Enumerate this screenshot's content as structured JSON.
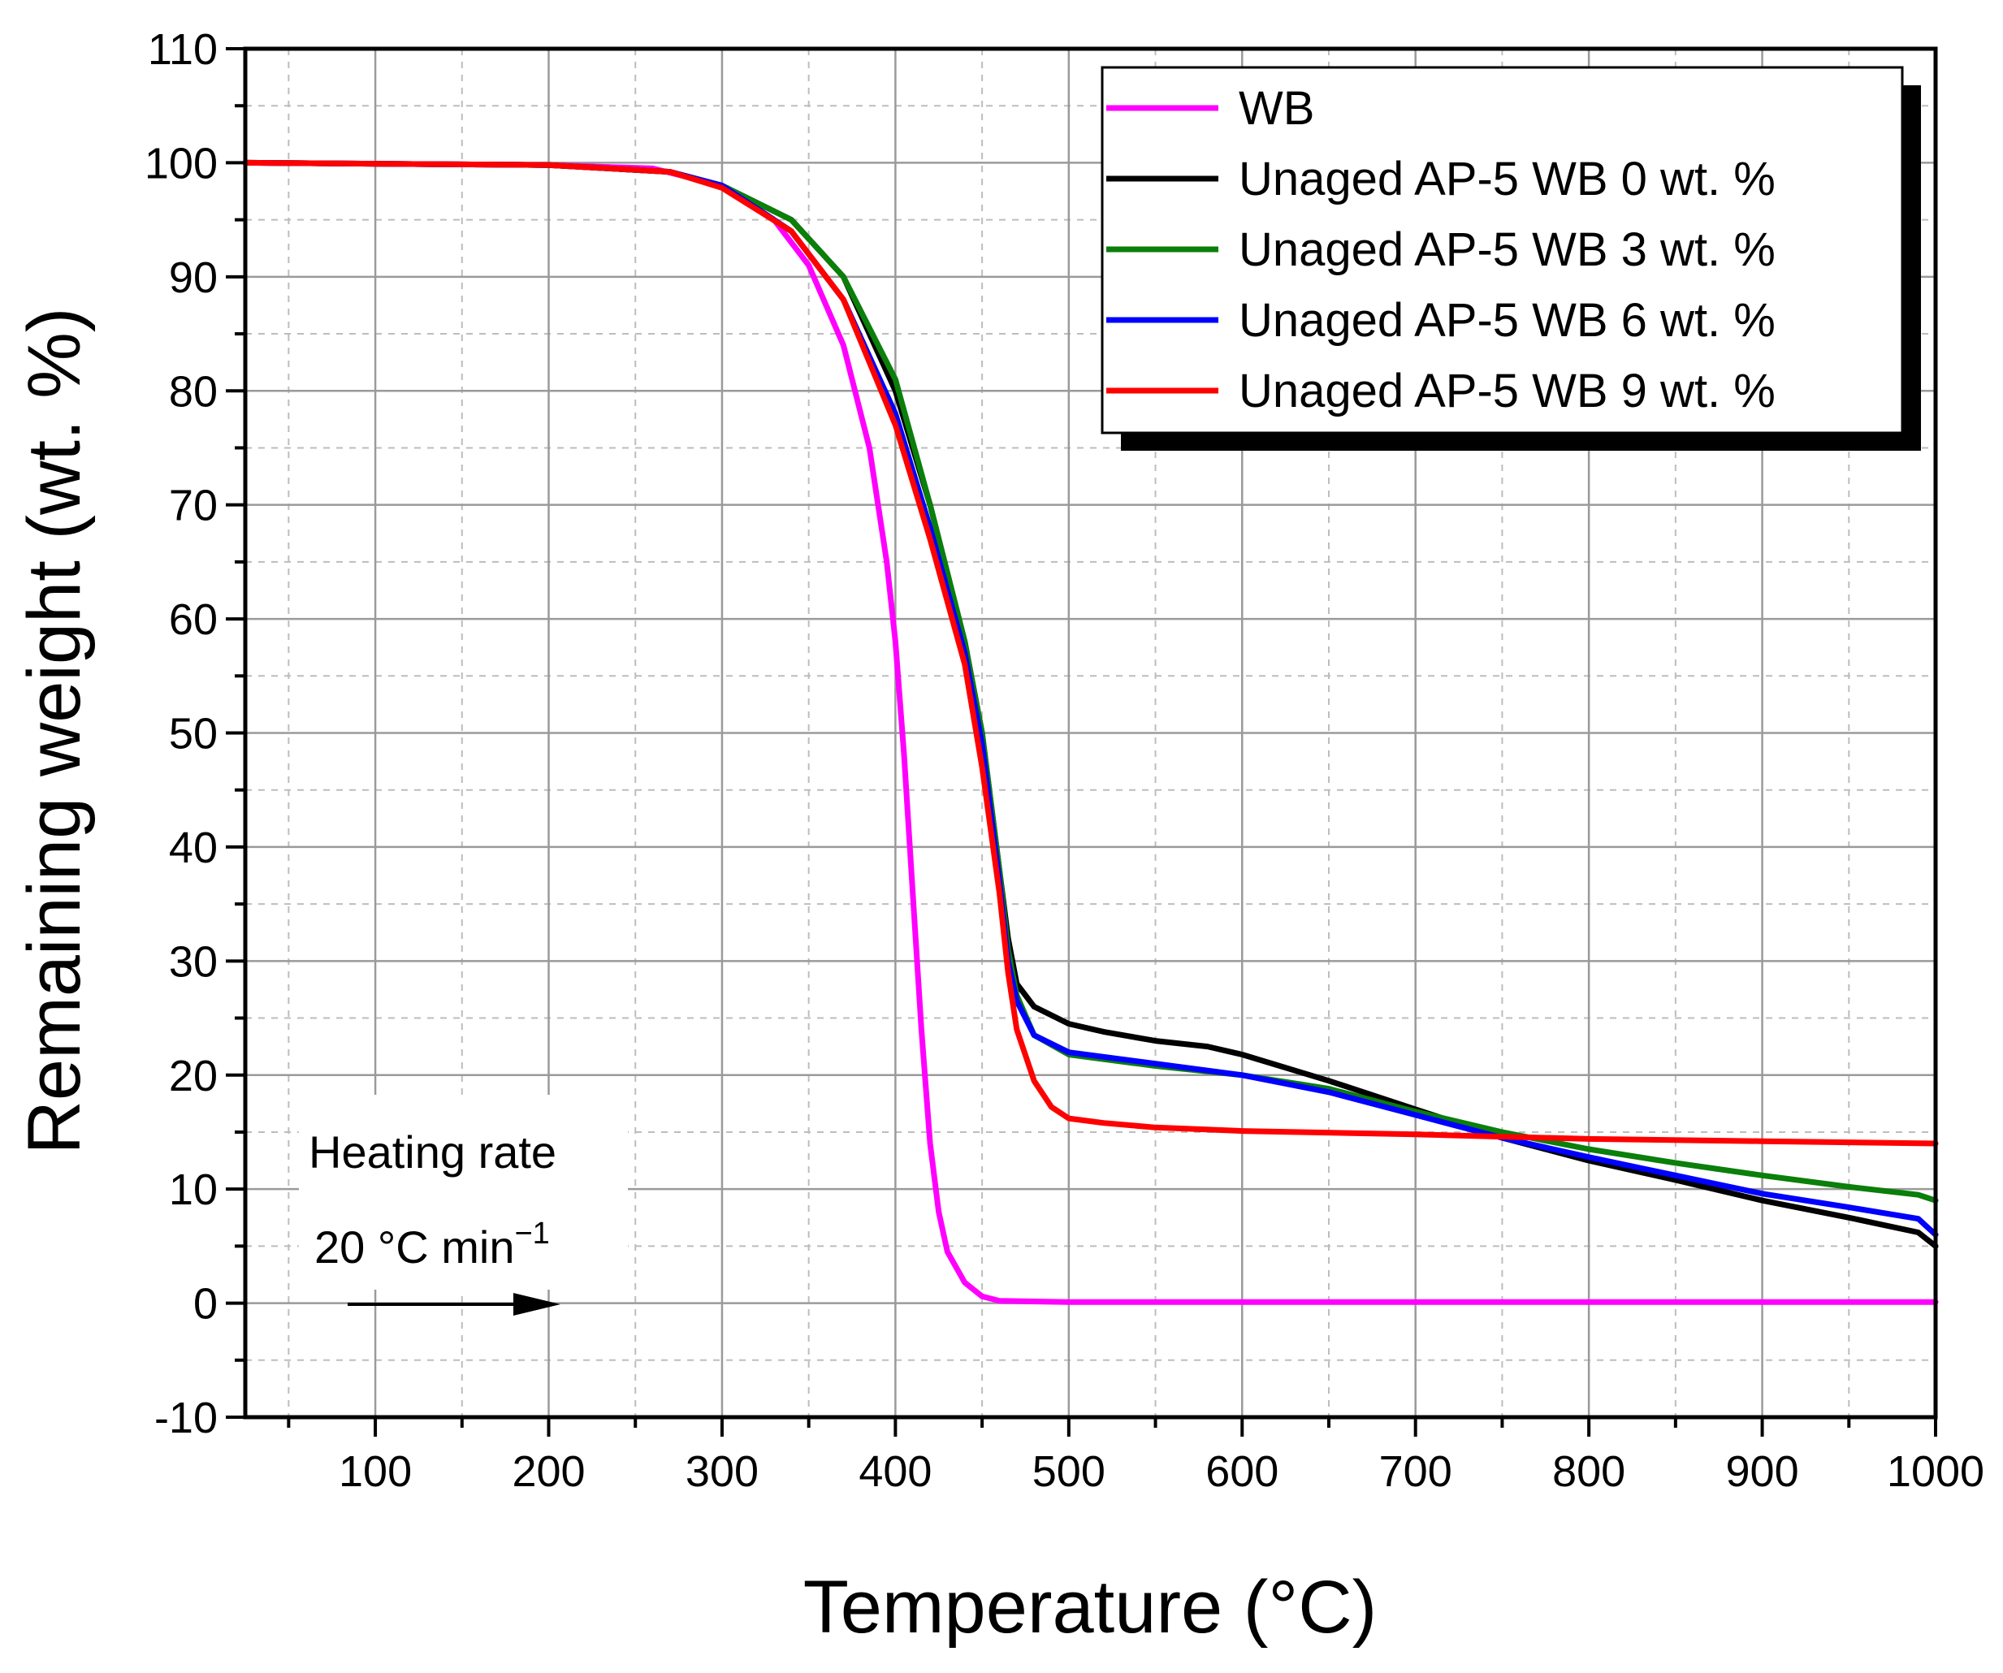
{
  "chart_data": {
    "type": "line",
    "title": "",
    "xlabel": "Temperature (°C)",
    "ylabel": "Remaining weight (wt. %)",
    "xlim": [
      25,
      1000
    ],
    "ylim": [
      -10,
      110
    ],
    "x_ticks": [
      100,
      200,
      300,
      400,
      500,
      600,
      700,
      800,
      900,
      1000
    ],
    "y_ticks": [
      -10,
      0,
      10,
      20,
      30,
      40,
      50,
      60,
      70,
      80,
      90,
      100,
      110
    ],
    "grid": true,
    "legend_position": "top-right",
    "annotation": {
      "line1": "Heating rate",
      "line2": "20 °C min",
      "sup": "−1"
    },
    "series": [
      {
        "name": "WB",
        "color": "#ff00ff",
        "points": [
          [
            25,
            100
          ],
          [
            200,
            99.8
          ],
          [
            260,
            99.5
          ],
          [
            300,
            98
          ],
          [
            330,
            95
          ],
          [
            350,
            91
          ],
          [
            370,
            84
          ],
          [
            385,
            75
          ],
          [
            395,
            65
          ],
          [
            400,
            58
          ],
          [
            405,
            48
          ],
          [
            410,
            36
          ],
          [
            415,
            24
          ],
          [
            420,
            14
          ],
          [
            425,
            8
          ],
          [
            430,
            4.5
          ],
          [
            440,
            1.8
          ],
          [
            450,
            0.6
          ],
          [
            460,
            0.2
          ],
          [
            500,
            0.1
          ],
          [
            1000,
            0.1
          ]
        ]
      },
      {
        "name": "Unaged AP-5 WB 0 wt. %",
        "color": "#000000",
        "points": [
          [
            25,
            100
          ],
          [
            200,
            99.8
          ],
          [
            270,
            99.2
          ],
          [
            300,
            98
          ],
          [
            340,
            95
          ],
          [
            370,
            90
          ],
          [
            400,
            80
          ],
          [
            420,
            70
          ],
          [
            440,
            58
          ],
          [
            450,
            50
          ],
          [
            460,
            38
          ],
          [
            465,
            32
          ],
          [
            470,
            28
          ],
          [
            480,
            26
          ],
          [
            500,
            24.5
          ],
          [
            520,
            23.8
          ],
          [
            550,
            23
          ],
          [
            580,
            22.5
          ],
          [
            600,
            21.8
          ],
          [
            650,
            19.5
          ],
          [
            700,
            17
          ],
          [
            750,
            14.5
          ],
          [
            800,
            12.5
          ],
          [
            850,
            10.8
          ],
          [
            900,
            9
          ],
          [
            950,
            7.5
          ],
          [
            990,
            6.2
          ],
          [
            1000,
            5
          ]
        ]
      },
      {
        "name": "Unaged AP-5 WB 3 wt. %",
        "color": "#0a7f0a",
        "points": [
          [
            25,
            100
          ],
          [
            200,
            99.8
          ],
          [
            270,
            99.2
          ],
          [
            300,
            98
          ],
          [
            340,
            95
          ],
          [
            370,
            90
          ],
          [
            400,
            81
          ],
          [
            420,
            70
          ],
          [
            440,
            58
          ],
          [
            450,
            50
          ],
          [
            460,
            38
          ],
          [
            465,
            31
          ],
          [
            470,
            27
          ],
          [
            480,
            23.5
          ],
          [
            500,
            21.8
          ],
          [
            550,
            20.8
          ],
          [
            600,
            20
          ],
          [
            650,
            18.8
          ],
          [
            700,
            16.8
          ],
          [
            750,
            15
          ],
          [
            800,
            13.5
          ],
          [
            850,
            12.3
          ],
          [
            900,
            11.2
          ],
          [
            950,
            10.2
          ],
          [
            990,
            9.5
          ],
          [
            1000,
            9
          ]
        ]
      },
      {
        "name": "Unaged AP-5 WB 6 wt. %",
        "color": "#0000ff",
        "points": [
          [
            25,
            100
          ],
          [
            200,
            99.8
          ],
          [
            270,
            99.2
          ],
          [
            300,
            98
          ],
          [
            340,
            94
          ],
          [
            370,
            88
          ],
          [
            400,
            78
          ],
          [
            420,
            68
          ],
          [
            440,
            57
          ],
          [
            450,
            49
          ],
          [
            460,
            37
          ],
          [
            465,
            30
          ],
          [
            470,
            26.5
          ],
          [
            480,
            23.5
          ],
          [
            500,
            22
          ],
          [
            550,
            21
          ],
          [
            600,
            20
          ],
          [
            650,
            18.5
          ],
          [
            700,
            16.5
          ],
          [
            750,
            14.5
          ],
          [
            800,
            12.8
          ],
          [
            850,
            11.2
          ],
          [
            900,
            9.6
          ],
          [
            950,
            8.4
          ],
          [
            990,
            7.4
          ],
          [
            1000,
            6
          ]
        ]
      },
      {
        "name": "Unaged AP-5 WB 9 wt. %",
        "color": "#ff0000",
        "points": [
          [
            25,
            100
          ],
          [
            200,
            99.8
          ],
          [
            270,
            99.2
          ],
          [
            300,
            97.8
          ],
          [
            340,
            94
          ],
          [
            370,
            88
          ],
          [
            400,
            77
          ],
          [
            420,
            67
          ],
          [
            440,
            56
          ],
          [
            450,
            47
          ],
          [
            460,
            36
          ],
          [
            465,
            29
          ],
          [
            470,
            24
          ],
          [
            480,
            19.5
          ],
          [
            490,
            17.2
          ],
          [
            500,
            16.2
          ],
          [
            520,
            15.8
          ],
          [
            550,
            15.4
          ],
          [
            600,
            15.1
          ],
          [
            700,
            14.8
          ],
          [
            800,
            14.4
          ],
          [
            900,
            14.2
          ],
          [
            1000,
            14
          ]
        ]
      }
    ]
  }
}
